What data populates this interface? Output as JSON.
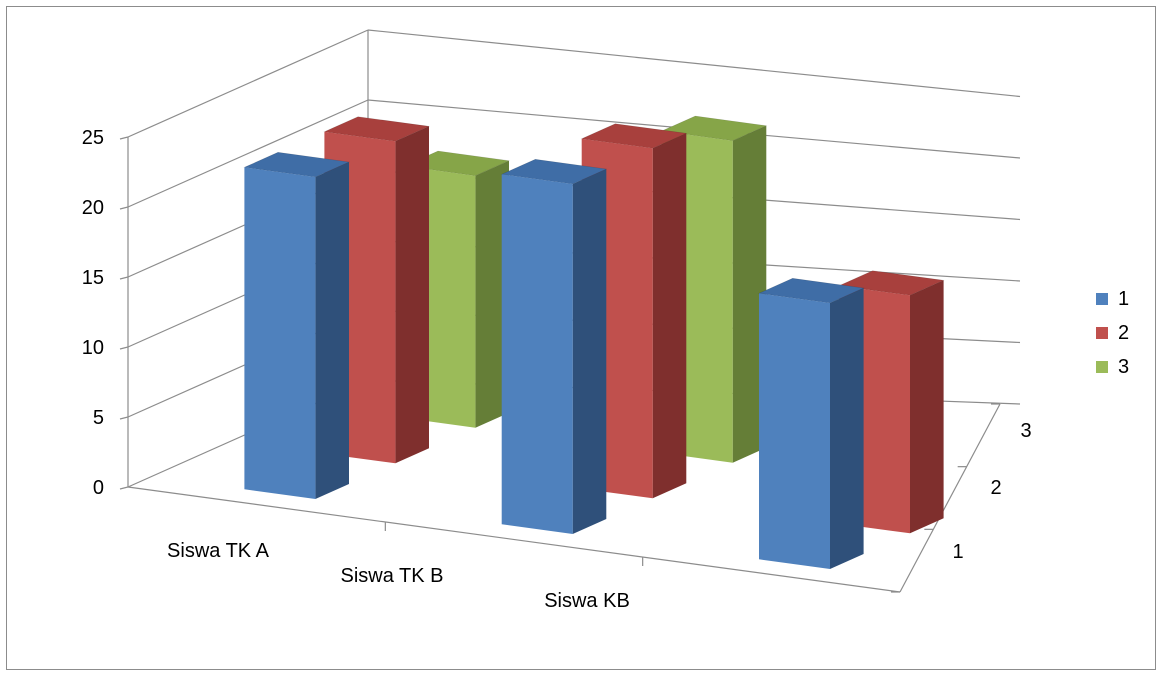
{
  "chart_data": {
    "type": "bar",
    "variant": "3d-column",
    "categories": [
      "Siswa TK A",
      "Siswa TK B",
      "Siswa KB"
    ],
    "series": [
      {
        "name": "1",
        "values": [
          23,
          25,
          19
        ]
      },
      {
        "name": "2",
        "values": [
          23,
          25,
          17
        ]
      },
      {
        "name": "3",
        "values": [
          18,
          23,
          0
        ]
      }
    ],
    "depth_labels": [
      "1",
      "2",
      "3"
    ],
    "y_ticks": [
      "0",
      "5",
      "10",
      "15",
      "20",
      "25"
    ],
    "ylim": [
      0,
      25
    ],
    "grid": true,
    "legend_position": "right",
    "colors": {
      "1": {
        "front": "#4f81bd",
        "side": "#2f507a",
        "top": "#3f6da6"
      },
      "2": {
        "front": "#c0504d",
        "side": "#7f2f2d",
        "top": "#a8403d"
      },
      "3": {
        "front": "#9bbb59",
        "side": "#657e37",
        "top": "#86a548"
      }
    }
  },
  "legend": {
    "items": [
      {
        "label": "1",
        "color": "#4f81bd"
      },
      {
        "label": "2",
        "color": "#c0504d"
      },
      {
        "label": "3",
        "color": "#9bbb59"
      }
    ]
  }
}
